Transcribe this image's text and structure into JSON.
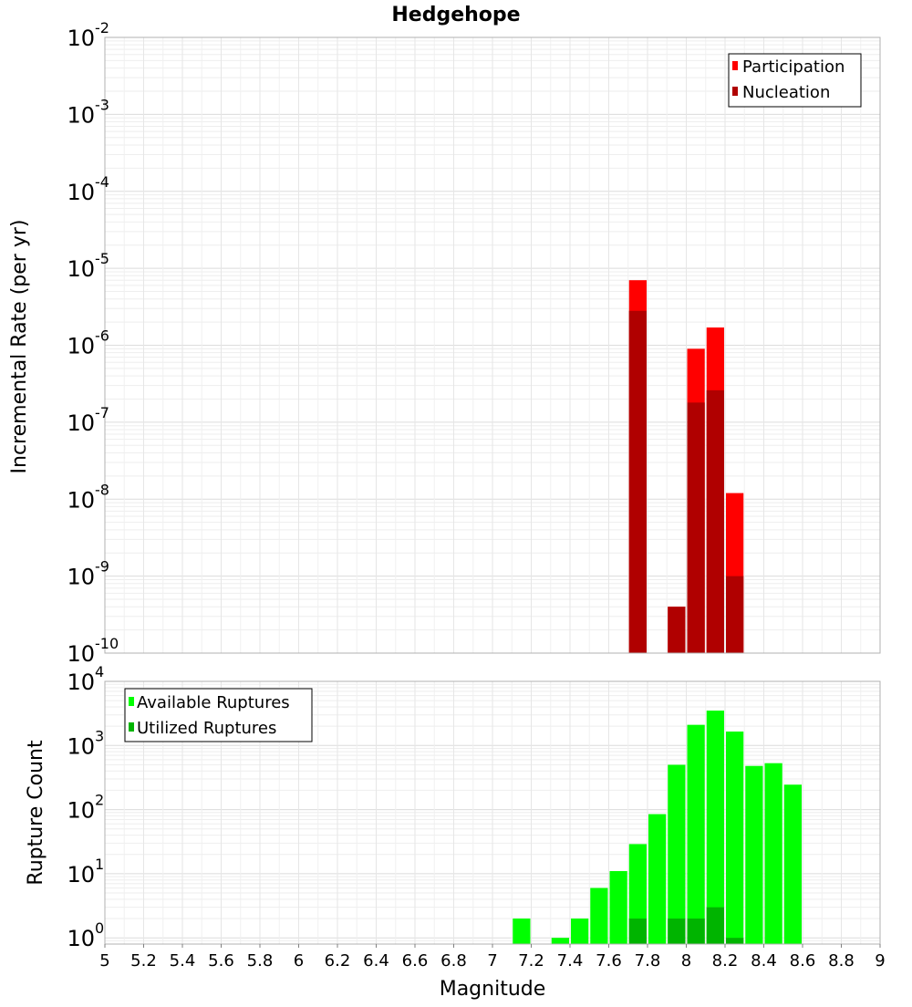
{
  "chart_data": [
    {
      "type": "bar",
      "title": "Hedgehope",
      "xlabel": "",
      "ylabel": "Incremental Rate (per yr)",
      "xlim": [
        5,
        9
      ],
      "ylim": [
        1e-10,
        0.01
      ],
      "yscale": "log",
      "y_tick_exponents": [
        "-10",
        "-9",
        "-8",
        "-7",
        "-6",
        "-5",
        "-4",
        "-3",
        "-2"
      ],
      "grid": true,
      "legend_position": "top-right",
      "bin_width": 0.1,
      "series": [
        {
          "name": "Participation",
          "color": "#ff0000",
          "points": [
            {
              "x": 7.75,
              "y": 7e-06
            },
            {
              "x": 7.95,
              "y": 4e-10
            },
            {
              "x": 8.05,
              "y": 9e-07
            },
            {
              "x": 8.15,
              "y": 1.7e-06
            },
            {
              "x": 8.25,
              "y": 1.2e-08
            }
          ]
        },
        {
          "name": "Nucleation",
          "color": "#b00000",
          "points": [
            {
              "x": 7.75,
              "y": 2.8e-06
            },
            {
              "x": 7.95,
              "y": 4e-10
            },
            {
              "x": 8.05,
              "y": 1.8e-07
            },
            {
              "x": 8.15,
              "y": 2.6e-07
            },
            {
              "x": 8.25,
              "y": 1e-09
            }
          ]
        }
      ]
    },
    {
      "type": "bar",
      "title": "",
      "xlabel": "Magnitude",
      "ylabel": "Rupture Count",
      "xlim": [
        5,
        9
      ],
      "ylim": [
        0.8,
        10000
      ],
      "yscale": "log",
      "y_tick_exponents": [
        "0",
        "1",
        "2",
        "3",
        "4"
      ],
      "x_tick_labels": [
        "5",
        "5.2",
        "5.4",
        "5.6",
        "5.8",
        "6",
        "6.2",
        "6.4",
        "6.6",
        "6.8",
        "7",
        "7.2",
        "7.4",
        "7.6",
        "7.8",
        "8",
        "8.2",
        "8.4",
        "8.6",
        "8.8",
        "9"
      ],
      "grid": true,
      "legend_position": "top-left",
      "bin_width": 0.1,
      "series": [
        {
          "name": "Available Ruptures",
          "color": "#00ff00",
          "points": [
            {
              "x": 7.15,
              "y": 2
            },
            {
              "x": 7.35,
              "y": 1
            },
            {
              "x": 7.45,
              "y": 2
            },
            {
              "x": 7.55,
              "y": 6
            },
            {
              "x": 7.65,
              "y": 11
            },
            {
              "x": 7.75,
              "y": 29
            },
            {
              "x": 7.85,
              "y": 85
            },
            {
              "x": 7.95,
              "y": 500
            },
            {
              "x": 8.05,
              "y": 2100
            },
            {
              "x": 8.15,
              "y": 3500
            },
            {
              "x": 8.25,
              "y": 1650
            },
            {
              "x": 8.35,
              "y": 480
            },
            {
              "x": 8.45,
              "y": 530
            },
            {
              "x": 8.55,
              "y": 245
            }
          ]
        },
        {
          "name": "Utilized Ruptures",
          "color": "#00b400",
          "points": [
            {
              "x": 7.75,
              "y": 2
            },
            {
              "x": 7.95,
              "y": 2
            },
            {
              "x": 8.05,
              "y": 2
            },
            {
              "x": 8.15,
              "y": 3
            },
            {
              "x": 8.25,
              "y": 1
            }
          ]
        }
      ]
    }
  ]
}
